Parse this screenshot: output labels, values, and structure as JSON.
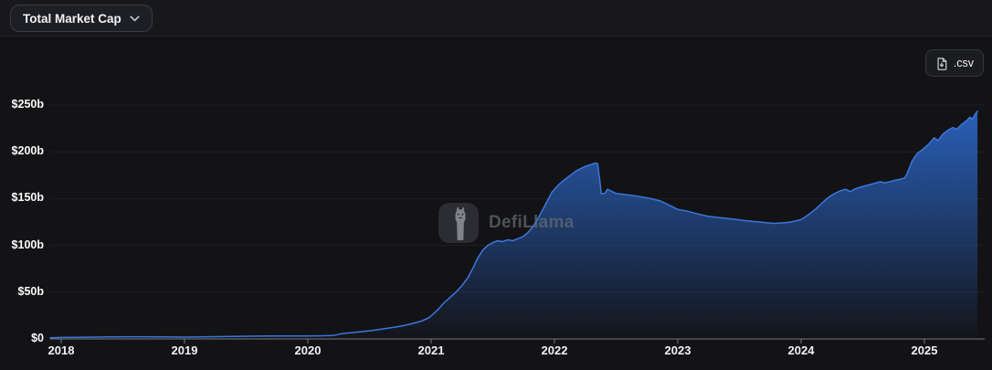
{
  "header": {
    "metric_dropdown": {
      "label": "Total Market Cap",
      "state": "collapsed"
    }
  },
  "toolbar": {
    "csv_label": ".csv"
  },
  "watermark": {
    "text": "DefiLlama"
  },
  "icons": {
    "chevron": "chevron-down-icon",
    "csv_file": "csv-download-file-icon",
    "logo": "defillama-llama-logo-icon"
  },
  "colors": {
    "background": "#131316",
    "header_background": "#18181c",
    "line": "#3b77db",
    "fill_top": "rgba(45,108,212,0.88)",
    "fill_bottom": "rgba(45,108,212,0.02)",
    "grid": "rgba(255,255,255,0.05)",
    "axis": "#77787d",
    "tick_label": "#f2f2f4"
  },
  "chart_data": {
    "type": "area",
    "title": "Total Market Cap",
    "unit": "USD billions",
    "xlabel": "",
    "ylabel": "",
    "xlim": [
      2017.91,
      2025.43
    ],
    "ylim": [
      0,
      250
    ],
    "grid": "horizontal",
    "legend_position": "none",
    "x_ticks": [
      {
        "value": 2018,
        "label": "2018"
      },
      {
        "value": 2019,
        "label": "2019"
      },
      {
        "value": 2020,
        "label": "2020"
      },
      {
        "value": 2021,
        "label": "2021"
      },
      {
        "value": 2022,
        "label": "2022"
      },
      {
        "value": 2023,
        "label": "2023"
      },
      {
        "value": 2024,
        "label": "2024"
      },
      {
        "value": 2025,
        "label": "2025"
      }
    ],
    "y_ticks": [
      {
        "value": 0,
        "label": "$0"
      },
      {
        "value": 50,
        "label": "$50b"
      },
      {
        "value": 100,
        "label": "$100b"
      },
      {
        "value": 150,
        "label": "$150b"
      },
      {
        "value": 200,
        "label": "$200b"
      },
      {
        "value": 250,
        "label": "$250b"
      }
    ],
    "series": [
      {
        "name": "Total Market Cap ($b)",
        "points": [
          [
            2017.91,
            1.2
          ],
          [
            2018.0,
            1.6
          ],
          [
            2018.2,
            1.9
          ],
          [
            2018.4,
            2.1
          ],
          [
            2018.6,
            2.3
          ],
          [
            2018.8,
            2.2
          ],
          [
            2019.0,
            2.0
          ],
          [
            2019.2,
            2.3
          ],
          [
            2019.4,
            2.6
          ],
          [
            2019.6,
            3.0
          ],
          [
            2019.8,
            3.2
          ],
          [
            2020.0,
            3.1
          ],
          [
            2020.1,
            3.3
          ],
          [
            2020.2,
            3.6
          ],
          [
            2020.24,
            4.6
          ],
          [
            2020.28,
            5.8
          ],
          [
            2020.35,
            6.6
          ],
          [
            2020.45,
            7.9
          ],
          [
            2020.55,
            9.6
          ],
          [
            2020.65,
            11.5
          ],
          [
            2020.75,
            13.6
          ],
          [
            2020.85,
            16.5
          ],
          [
            2020.92,
            19.0
          ],
          [
            2020.98,
            22.5
          ],
          [
            2021.02,
            27.0
          ],
          [
            2021.06,
            32.0
          ],
          [
            2021.1,
            38.0
          ],
          [
            2021.15,
            44.0
          ],
          [
            2021.2,
            50.0
          ],
          [
            2021.25,
            57.0
          ],
          [
            2021.3,
            66.0
          ],
          [
            2021.34,
            76.0
          ],
          [
            2021.38,
            87.0
          ],
          [
            2021.42,
            95.0
          ],
          [
            2021.46,
            100.0
          ],
          [
            2021.5,
            103.0
          ],
          [
            2021.54,
            105.0
          ],
          [
            2021.58,
            104.0
          ],
          [
            2021.62,
            106.0
          ],
          [
            2021.66,
            105.0
          ],
          [
            2021.7,
            107.0
          ],
          [
            2021.74,
            109.0
          ],
          [
            2021.78,
            113.0
          ],
          [
            2021.82,
            119.0
          ],
          [
            2021.86,
            127.0
          ],
          [
            2021.9,
            137.0
          ],
          [
            2021.94,
            147.0
          ],
          [
            2021.98,
            157.0
          ],
          [
            2022.02,
            163.0
          ],
          [
            2022.06,
            168.0
          ],
          [
            2022.1,
            172.0
          ],
          [
            2022.14,
            176.0
          ],
          [
            2022.18,
            180.0
          ],
          [
            2022.22,
            182.5
          ],
          [
            2022.26,
            185.0
          ],
          [
            2022.3,
            186.5
          ],
          [
            2022.33,
            188.0
          ],
          [
            2022.35,
            187.5
          ],
          [
            2022.365,
            172.0
          ],
          [
            2022.38,
            155.0
          ],
          [
            2022.41,
            156.0
          ],
          [
            2022.43,
            160.0
          ],
          [
            2022.46,
            158.0
          ],
          [
            2022.5,
            155.5
          ],
          [
            2022.56,
            154.5
          ],
          [
            2022.62,
            153.5
          ],
          [
            2022.7,
            152.0
          ],
          [
            2022.78,
            150.0
          ],
          [
            2022.86,
            147.5
          ],
          [
            2022.93,
            143.0
          ],
          [
            2023.0,
            138.5
          ],
          [
            2023.08,
            136.5
          ],
          [
            2023.15,
            134.0
          ],
          [
            2023.25,
            131.0
          ],
          [
            2023.35,
            129.5
          ],
          [
            2023.45,
            128.0
          ],
          [
            2023.55,
            126.5
          ],
          [
            2023.62,
            125.5
          ],
          [
            2023.7,
            124.5
          ],
          [
            2023.78,
            123.5
          ],
          [
            2023.85,
            124.0
          ],
          [
            2023.92,
            125.0
          ],
          [
            2024.0,
            127.5
          ],
          [
            2024.04,
            131.0
          ],
          [
            2024.08,
            135.0
          ],
          [
            2024.12,
            139.0
          ],
          [
            2024.16,
            144.0
          ],
          [
            2024.2,
            149.0
          ],
          [
            2024.24,
            153.0
          ],
          [
            2024.28,
            156.0
          ],
          [
            2024.32,
            158.5
          ],
          [
            2024.36,
            160.0
          ],
          [
            2024.4,
            157.5
          ],
          [
            2024.44,
            160.5
          ],
          [
            2024.5,
            163.0
          ],
          [
            2024.56,
            165.0
          ],
          [
            2024.6,
            166.5
          ],
          [
            2024.64,
            168.0
          ],
          [
            2024.68,
            167.0
          ],
          [
            2024.72,
            168.0
          ],
          [
            2024.76,
            169.5
          ],
          [
            2024.8,
            170.5
          ],
          [
            2024.84,
            172.0
          ],
          [
            2024.86,
            177.0
          ],
          [
            2024.9,
            190.0
          ],
          [
            2024.94,
            198.0
          ],
          [
            2025.0,
            204.0
          ],
          [
            2025.04,
            209.0
          ],
          [
            2025.08,
            215.0
          ],
          [
            2025.11,
            212.0
          ],
          [
            2025.15,
            219.0
          ],
          [
            2025.19,
            223.0
          ],
          [
            2025.23,
            226.0
          ],
          [
            2025.26,
            224.0
          ],
          [
            2025.3,
            229.0
          ],
          [
            2025.34,
            233.0
          ],
          [
            2025.37,
            237.0
          ],
          [
            2025.39,
            235.0
          ],
          [
            2025.41,
            240.0
          ],
          [
            2025.43,
            243.5
          ]
        ]
      }
    ]
  }
}
